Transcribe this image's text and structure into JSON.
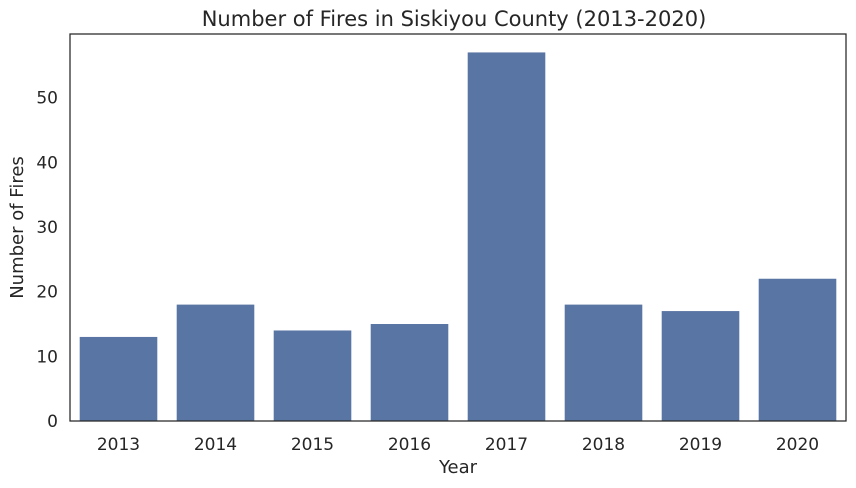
{
  "chart_data": {
    "type": "bar",
    "title": "Number of Fires in Siskiyou County (2013-2020)",
    "xlabel": "Year",
    "ylabel": "Number of Fires",
    "categories": [
      "2013",
      "2014",
      "2015",
      "2016",
      "2017",
      "2018",
      "2019",
      "2020"
    ],
    "values": [
      13,
      18,
      14,
      15,
      57,
      18,
      17,
      22
    ],
    "ylim": [
      0,
      59.85
    ],
    "yticks": [
      0,
      10,
      20,
      30,
      40,
      50
    ],
    "grid": false,
    "legend": "none",
    "bar_color": "#5975a4",
    "axis_color": "#262626"
  }
}
